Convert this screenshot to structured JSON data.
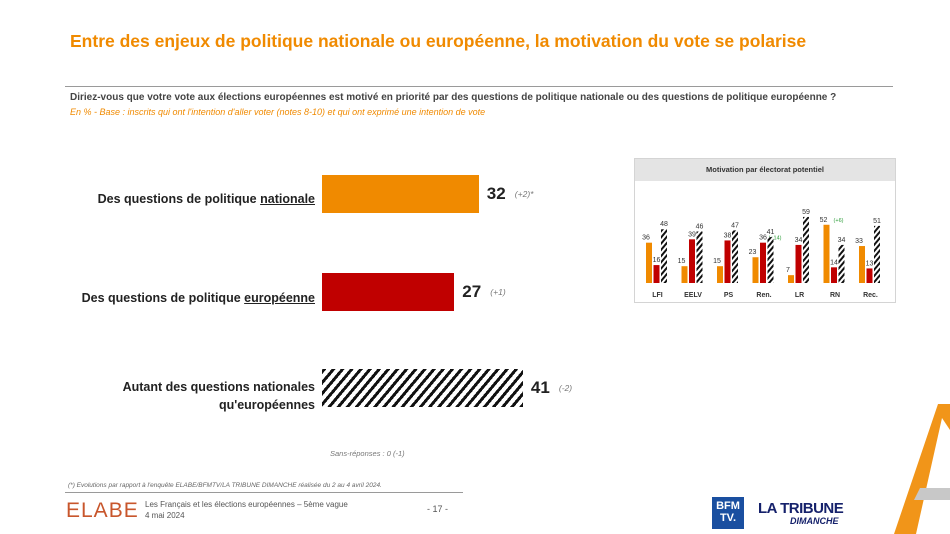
{
  "title": "Entre des enjeux de politique nationale ou européenne, la motivation du vote se polarise",
  "question": "Diriez-vous que votre vote aux élections européennes est motivé en priorité par des questions de politique nationale ou des questions de politique européenne ?",
  "base": "En % - Base : inscrits qui ont l'intention d'aller voter (notes 8-10) et qui ont exprimé une intention de vote",
  "colors": {
    "orange": "#f08a00",
    "red": "#c00000",
    "hatch": "#111111"
  },
  "chart_data": [
    {
      "type": "bar",
      "orientation": "horizontal",
      "categories": [
        "Des questions de politique nationale",
        "Des questions de politique européenne",
        "Autant des questions nationales qu'européennes"
      ],
      "category_parts": [
        {
          "pre": "Des questions de politique ",
          "em": "nationale"
        },
        {
          "pre": "Des questions de politique ",
          "em": "européenne"
        },
        {
          "line1": "Autant des questions nationales",
          "line2": "qu'européennes"
        }
      ],
      "values": [
        32,
        27,
        41
      ],
      "value_labels": [
        "32",
        "27",
        "41"
      ],
      "evolutions": [
        "(+2)*",
        "(+1)",
        "(-2)"
      ],
      "note": "Sans-réponses : 0 (-1)",
      "unit": "%"
    },
    {
      "type": "bar",
      "title": "Motivation par électorat potentiel",
      "categories": [
        "LFI",
        "EELV",
        "PS",
        "Ren.",
        "LR",
        "RN",
        "Rec."
      ],
      "series": [
        {
          "name": "Des questions de politique nationale",
          "values": [
            36,
            15,
            15,
            23,
            7,
            52,
            33
          ]
        },
        {
          "name": "Des questions de politique européenne",
          "values": [
            16,
            39,
            38,
            36,
            34,
            14,
            13
          ]
        },
        {
          "name": "Autant des questions nationales qu'européennes",
          "values": [
            48,
            46,
            47,
            41,
            59,
            34,
            51
          ]
        }
      ],
      "annotations": [
        {
          "category": "Ren.",
          "series": 1,
          "text": "(+14)"
        },
        {
          "category": "RN",
          "series": 0,
          "text": "(+6)"
        }
      ],
      "ylim": [
        0,
        60
      ]
    }
  ],
  "footer": {
    "footnote": "(*) Evolutions par rapport à l'enquête ELABE/BFMTV/LA TRIBUNE DIMANCHE réalisée du 2 au 4 avril 2024.",
    "logo": "ELABE",
    "study": "Les Français et les élections européennes – 5ème vague",
    "date": "4 mai 2024",
    "page": "- 17 -",
    "bfm": "BFM TV.",
    "tribune": "LA TRIBUNE",
    "tribune_sub": "DIMANCHE"
  }
}
